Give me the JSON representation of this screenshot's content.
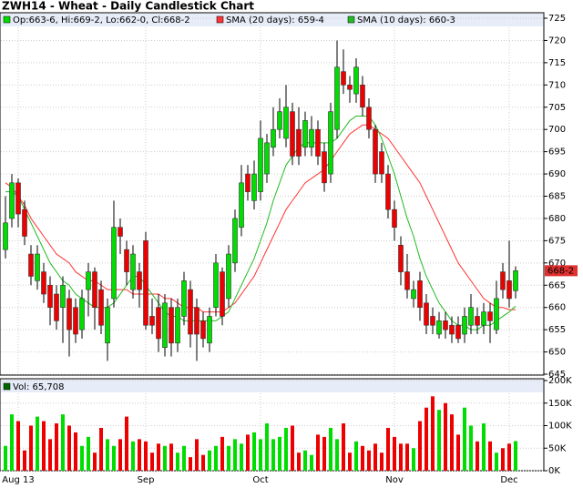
{
  "chart_data": {
    "type": "candlestick",
    "title": "ZWH14 - Wheat - Daily Candlestick Chart",
    "ohlc_label": "Op:663-6, Hi:669-2, Lo:662-0, Cl:668-2",
    "last_label": "668-2",
    "up_color": "#00dd00",
    "down_color": "#ee0000",
    "categories": [
      null,
      null,
      "Aug 13",
      null,
      null,
      null,
      null,
      null,
      null,
      null,
      null,
      null,
      null,
      null,
      null,
      null,
      null,
      null,
      null,
      null,
      null,
      null,
      "Sep",
      null,
      null,
      null,
      null,
      null,
      null,
      null,
      null,
      null,
      null,
      null,
      null,
      null,
      null,
      null,
      null,
      null,
      "Oct",
      null,
      null,
      null,
      null,
      null,
      null,
      null,
      null,
      null,
      null,
      null,
      null,
      null,
      null,
      null,
      null,
      null,
      null,
      null,
      null,
      "Nov",
      null,
      null,
      null,
      null,
      null,
      null,
      null,
      null,
      null,
      null,
      null,
      null,
      null,
      null,
      null,
      null,
      null,
      "Dec",
      null
    ],
    "open": [
      673,
      680,
      688,
      682,
      672,
      666,
      668,
      665,
      663,
      660,
      662,
      660,
      655,
      664,
      668,
      664,
      652,
      662,
      678,
      673,
      664,
      668,
      675,
      658,
      660,
      651,
      660,
      652,
      658,
      664,
      660,
      657,
      652,
      660,
      668,
      662,
      670,
      678,
      690,
      684,
      686,
      690,
      696,
      700,
      698,
      704,
      700,
      696,
      696,
      700,
      695,
      690,
      700,
      713,
      710,
      708,
      710,
      705,
      700,
      695,
      690,
      682,
      674,
      668,
      662,
      666,
      661,
      658,
      654,
      657,
      656,
      656,
      654,
      656,
      658,
      656,
      659,
      655,
      668,
      666,
      663.75
    ],
    "high": [
      685,
      690,
      689,
      684,
      674,
      674,
      670,
      667,
      665,
      667,
      664,
      662,
      664,
      670,
      669,
      666,
      662,
      684,
      680,
      675,
      674,
      670,
      677,
      662,
      663,
      663,
      662,
      662,
      668,
      666,
      662,
      659,
      660,
      672,
      669,
      674,
      682,
      692,
      692,
      693,
      702,
      699,
      705,
      707,
      710,
      706,
      705,
      704,
      703,
      702,
      697,
      706,
      720,
      718,
      712,
      716,
      712,
      707,
      701,
      697,
      692,
      684,
      676,
      672,
      666,
      668,
      663,
      660,
      659,
      659,
      658,
      658,
      660,
      663,
      660,
      661,
      661,
      666,
      670,
      675,
      669.25
    ],
    "low": [
      671,
      678,
      678,
      674,
      665,
      664,
      661,
      656,
      655,
      652,
      649,
      652,
      653,
      658,
      655,
      654,
      648,
      660,
      672,
      665,
      662,
      660,
      655,
      654,
      650,
      649,
      649,
      650,
      656,
      651,
      648,
      651,
      650,
      658,
      656,
      660,
      668,
      676,
      684,
      682,
      684,
      688,
      694,
      698,
      696,
      692,
      692,
      694,
      694,
      692,
      686,
      688,
      698,
      708,
      706,
      706,
      703,
      698,
      688,
      688,
      680,
      675,
      665,
      662,
      660,
      657,
      654,
      654,
      653,
      653,
      652,
      652,
      652,
      654,
      654,
      654,
      652,
      654,
      662,
      660,
      662
    ],
    "close": [
      679,
      688,
      681,
      676,
      667,
      672,
      663,
      660,
      657,
      665,
      655,
      654,
      662,
      668,
      660,
      656,
      660,
      678,
      676,
      668,
      672,
      664,
      656,
      656,
      653,
      661,
      652,
      660,
      666,
      654,
      654,
      653,
      658,
      670,
      658,
      672,
      680,
      688,
      686,
      690,
      698,
      697,
      700,
      704,
      705,
      694,
      694,
      702,
      700,
      694,
      688,
      704,
      714,
      710,
      709,
      714,
      705,
      700,
      690,
      690,
      682,
      678,
      668,
      664,
      664,
      660,
      656,
      656,
      657,
      655,
      654,
      653,
      658,
      660,
      656,
      659,
      657,
      662,
      664,
      662,
      668.25
    ],
    "series": [
      {
        "name": "SMA (20 days): 659-4",
        "color": "#ff3333",
        "values": [
          688,
          687,
          685,
          683,
          680,
          678,
          676,
          674,
          672,
          671,
          670,
          668,
          667,
          666,
          666,
          665,
          664,
          664,
          664,
          664,
          663,
          663,
          663,
          663,
          663,
          662,
          662,
          661,
          660,
          660,
          660,
          659,
          659,
          659,
          659,
          660,
          661,
          663,
          665,
          667,
          670,
          673,
          676,
          679,
          682,
          684,
          686,
          688,
          689,
          690,
          691,
          693,
          695,
          697,
          699,
          700,
          701,
          701,
          700,
          699,
          698,
          696,
          694,
          692,
          690,
          688,
          685,
          682,
          679,
          676,
          673,
          670,
          668,
          666,
          664,
          662,
          661,
          660,
          660,
          659.5,
          659.5
        ]
      },
      {
        "name": "SMA (10 days): 660-3",
        "color": "#22bb22",
        "values": [
          686,
          686,
          685,
          682,
          679,
          676,
          673,
          670,
          668,
          666,
          665,
          663,
          662,
          661,
          660,
          660,
          660,
          661,
          663,
          665,
          667,
          667,
          665,
          663,
          661,
          659,
          658,
          658,
          657,
          657,
          657,
          657,
          657,
          657,
          658,
          659,
          662,
          665,
          668,
          671,
          675,
          679,
          684,
          688,
          692,
          694,
          696,
          697,
          697,
          697,
          697,
          697,
          698,
          700,
          702,
          703,
          703,
          703,
          701,
          698,
          694,
          690,
          685,
          680,
          676,
          671,
          667,
          664,
          661,
          659,
          657,
          656,
          656,
          655,
          655,
          656,
          656,
          657,
          658,
          659,
          660.3
        ]
      }
    ],
    "ylim": [
      645,
      725
    ],
    "yticks": [
      645,
      650,
      655,
      660,
      665,
      670,
      675,
      680,
      685,
      690,
      695,
      700,
      705,
      710,
      715,
      720,
      725
    ],
    "volume_name": "Vol: 65,708",
    "volume": [
      55000,
      125000,
      110000,
      45000,
      100000,
      120000,
      110000,
      70000,
      105000,
      125000,
      100000,
      85000,
      55000,
      75000,
      40000,
      95000,
      70000,
      55000,
      70000,
      120000,
      65000,
      70000,
      65000,
      40000,
      60000,
      55000,
      60000,
      40000,
      55000,
      30000,
      70000,
      35000,
      45000,
      55000,
      75000,
      55000,
      70000,
      60000,
      80000,
      85000,
      70000,
      105000,
      70000,
      75000,
      95000,
      100000,
      40000,
      45000,
      35000,
      80000,
      75000,
      95000,
      70000,
      105000,
      40000,
      65000,
      55000,
      45000,
      60000,
      40000,
      95000,
      75000,
      60000,
      60000,
      50000,
      110000,
      140000,
      165000,
      135000,
      150000,
      125000,
      80000,
      140000,
      100000,
      65000,
      105000,
      65000,
      40000,
      50000,
      60000,
      65708
    ],
    "vlim": [
      0,
      200000
    ],
    "vticks": [
      {
        "value": 0,
        "label": "0K"
      },
      {
        "value": 50000,
        "label": "50K"
      },
      {
        "value": 100000,
        "label": "100K"
      },
      {
        "value": 150000,
        "label": "150K"
      },
      {
        "value": 200000,
        "label": "200K"
      }
    ],
    "grid": true
  }
}
